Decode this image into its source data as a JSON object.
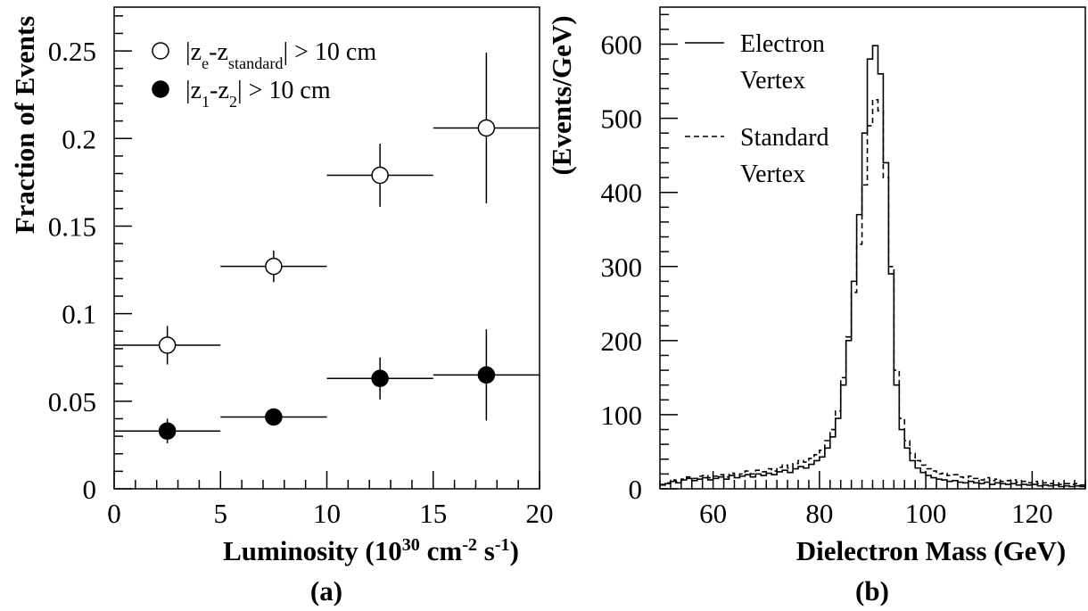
{
  "chart_data": [
    {
      "panel_label": "(a)",
      "type": "scatter",
      "xlabel": "Luminosity (10^30 cm^-2 s^-1)",
      "xlabel_parts": [
        "Luminosity (10",
        "30",
        " cm",
        "-2",
        " s",
        "-1",
        ")"
      ],
      "ylabel": "Fraction of Events",
      "xlim": [
        0,
        20
      ],
      "ylim": [
        0,
        0.275
      ],
      "x_ticks": [
        0,
        5,
        10,
        15,
        20
      ],
      "x_tick_labels": [
        "0",
        "5",
        "10",
        "15",
        "20"
      ],
      "y_ticks": [
        0,
        0.05,
        0.1,
        0.15,
        0.2,
        0.25
      ],
      "y_tick_labels": [
        "0",
        "0.05",
        "0.1",
        "0.15",
        "0.2",
        "0.25"
      ],
      "legend_position": "top-left",
      "series": [
        {
          "name": "|ze-zstandard| > 10 cm",
          "name_parts": [
            "|z",
            "e",
            "-z",
            "standard",
            "|  > 10 cm"
          ],
          "marker": "open-circle",
          "points": [
            {
              "x": 2.5,
              "x_err": 2.5,
              "y": 0.082,
              "y_err": 0.011
            },
            {
              "x": 7.5,
              "x_err": 2.5,
              "y": 0.127,
              "y_err": 0.009
            },
            {
              "x": 12.5,
              "x_err": 2.5,
              "y": 0.179,
              "y_err": 0.018
            },
            {
              "x": 17.5,
              "x_err": 2.5,
              "y": 0.206,
              "y_err": 0.043
            }
          ]
        },
        {
          "name": "|z1-z2| > 10 cm",
          "name_parts": [
            "|z",
            "1",
            "-z",
            "2",
            "|  > 10 cm"
          ],
          "marker": "filled-circle",
          "points": [
            {
              "x": 2.5,
              "x_err": 2.5,
              "y": 0.033,
              "y_err": 0.007
            },
            {
              "x": 7.5,
              "x_err": 2.5,
              "y": 0.041,
              "y_err": 0.004
            },
            {
              "x": 12.5,
              "x_err": 2.5,
              "y": 0.063,
              "y_err": 0.012
            },
            {
              "x": 17.5,
              "x_err": 2.5,
              "y": 0.065,
              "y_err": 0.026
            }
          ]
        }
      ]
    },
    {
      "panel_label": "(b)",
      "type": "line",
      "style": "histogram",
      "xlabel": "Dielectron Mass (GeV)",
      "ylabel": "(Events/GeV)",
      "xlim": [
        50,
        130
      ],
      "ylim": [
        0,
        650
      ],
      "x_ticks": [
        60,
        80,
        100,
        120
      ],
      "x_tick_labels": [
        "60",
        "80",
        "100",
        "120"
      ],
      "y_ticks": [
        0,
        100,
        200,
        300,
        400,
        500,
        600
      ],
      "y_tick_labels": [
        "0",
        "100",
        "200",
        "300",
        "400",
        "500",
        "600"
      ],
      "legend_position": "top-left",
      "bin_width": 1,
      "bin_low_edges": [
        50,
        51,
        52,
        53,
        54,
        55,
        56,
        57,
        58,
        59,
        60,
        61,
        62,
        63,
        64,
        65,
        66,
        67,
        68,
        69,
        70,
        71,
        72,
        73,
        74,
        75,
        76,
        77,
        78,
        79,
        80,
        81,
        82,
        83,
        84,
        85,
        86,
        87,
        88,
        89,
        90,
        91,
        92,
        93,
        94,
        95,
        96,
        97,
        98,
        99,
        100,
        101,
        102,
        103,
        104,
        105,
        106,
        107,
        108,
        109,
        110,
        111,
        112,
        113,
        114,
        115,
        116,
        117,
        118,
        119,
        120,
        121,
        122,
        123,
        124,
        125,
        126,
        127,
        128,
        129
      ],
      "series": [
        {
          "name": "Electron Vertex",
          "name_lines": [
            "Electron",
            "Vertex"
          ],
          "line_style": "solid",
          "values": [
            5,
            7,
            10,
            8,
            12,
            14,
            11,
            13,
            15,
            12,
            14,
            16,
            13,
            18,
            15,
            17,
            19,
            16,
            20,
            18,
            21,
            19,
            23,
            25,
            22,
            27,
            30,
            28,
            33,
            38,
            43,
            55,
            70,
            95,
            140,
            200,
            280,
            370,
            480,
            580,
            598,
            560,
            440,
            290,
            140,
            80,
            55,
            38,
            28,
            22,
            18,
            15,
            13,
            12,
            10,
            11,
            9,
            8,
            10,
            8,
            7,
            9,
            6,
            8,
            7,
            6,
            7,
            5,
            6,
            5,
            6,
            4,
            5,
            4,
            5,
            3,
            4,
            3,
            4,
            3
          ]
        },
        {
          "name": "Standard Vertex",
          "name_lines": [
            "Standard",
            "Vertex"
          ],
          "line_style": "dashed",
          "values": [
            6,
            8,
            12,
            10,
            13,
            16,
            14,
            17,
            18,
            15,
            17,
            19,
            16,
            21,
            18,
            20,
            24,
            20,
            25,
            23,
            27,
            24,
            29,
            32,
            28,
            34,
            38,
            36,
            41,
            46,
            52,
            65,
            80,
            105,
            150,
            205,
            265,
            330,
            410,
            490,
            525,
            510,
            420,
            300,
            160,
            95,
            65,
            48,
            38,
            32,
            27,
            24,
            20,
            21,
            18,
            19,
            16,
            15,
            17,
            14,
            12,
            15,
            11,
            13,
            10,
            11,
            12,
            9,
            10,
            8,
            10,
            7,
            8,
            7,
            8,
            6,
            7,
            6,
            7,
            5
          ]
        }
      ]
    }
  ]
}
